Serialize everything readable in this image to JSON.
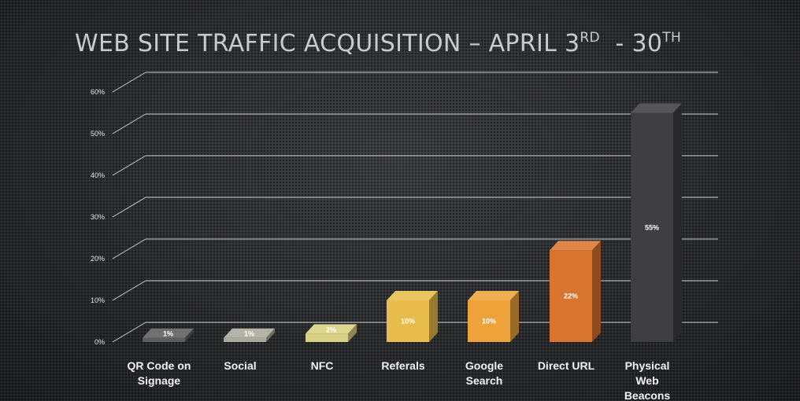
{
  "title": {
    "main": "WEB SITE TRAFFIC ACQUISITION – APRIL 3",
    "sup1": "RD",
    "mid": "  - 30",
    "sup2": "TH"
  },
  "chart_data": {
    "type": "bar",
    "title": "WEB SITE TRAFFIC ACQUISITION – APRIL 3RD - 30TH",
    "categories": [
      "QR Code on Signage",
      "Social",
      "NFC",
      "Referals",
      "Google Search",
      "Direct URL",
      "Physical Web Beacons"
    ],
    "category_lines": [
      [
        "QR Code on",
        "Signage"
      ],
      [
        "Social"
      ],
      [
        "NFC"
      ],
      [
        "Referals"
      ],
      [
        "Google",
        "Search"
      ],
      [
        "Direct URL"
      ],
      [
        "Physical",
        "Web",
        "Beacons"
      ]
    ],
    "values": [
      1,
      1,
      2,
      10,
      10,
      22,
      55
    ],
    "data_labels": [
      "1%",
      "1%",
      "2%",
      "10%",
      "10%",
      "22%",
      "55%"
    ],
    "colors": [
      "#5e5e5e",
      "#aaa99c",
      "#d8d082",
      "#e7bc4c",
      "#eea33a",
      "#d9742e",
      "#3f3f41"
    ],
    "yticks": [
      "0%",
      "10%",
      "20%",
      "30%",
      "40%",
      "50%",
      "60%"
    ],
    "ylim": [
      0,
      60
    ],
    "grid": true,
    "style": "3d-perspective"
  }
}
